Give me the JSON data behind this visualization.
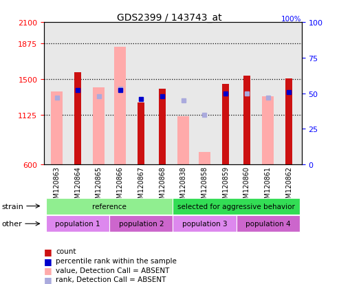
{
  "title": "GDS2399 / 143743_at",
  "samples": [
    "GSM120863",
    "GSM120864",
    "GSM120865",
    "GSM120866",
    "GSM120867",
    "GSM120868",
    "GSM120838",
    "GSM120858",
    "GSM120859",
    "GSM120860",
    "GSM120861",
    "GSM120862"
  ],
  "count_values": [
    null,
    1570,
    null,
    null,
    1255,
    1395,
    null,
    null,
    1450,
    1535,
    null,
    1510
  ],
  "absent_value_bars": [
    1370,
    null,
    1415,
    1840,
    null,
    null,
    1110,
    730,
    null,
    null,
    1320,
    null
  ],
  "percentile_rank": [
    null,
    52,
    null,
    52,
    46,
    48,
    null,
    null,
    50,
    null,
    null,
    51
  ],
  "absent_rank": [
    47,
    null,
    48,
    53,
    null,
    null,
    45,
    35,
    null,
    50,
    47,
    null
  ],
  "ylim": [
    600,
    2100
  ],
  "y2lim": [
    0,
    100
  ],
  "yticks": [
    600,
    1125,
    1500,
    1875,
    2100
  ],
  "y2ticks": [
    0,
    25,
    50,
    75,
    100
  ],
  "dotted_lines": [
    1875,
    1500,
    1125
  ],
  "strain_groups": [
    {
      "label": "reference",
      "start": 0,
      "end": 5,
      "color": "#90ee90"
    },
    {
      "label": "selected for aggressive behavior",
      "start": 6,
      "end": 11,
      "color": "#33dd55"
    }
  ],
  "other_groups": [
    {
      "label": "population 1",
      "start": 0,
      "end": 2,
      "color": "#dd88ee"
    },
    {
      "label": "population 2",
      "start": 3,
      "end": 5,
      "color": "#cc66cc"
    },
    {
      "label": "population 3",
      "start": 6,
      "end": 8,
      "color": "#dd88ee"
    },
    {
      "label": "population 4",
      "start": 9,
      "end": 11,
      "color": "#cc66cc"
    }
  ],
  "count_color": "#cc1111",
  "absent_value_color": "#ffaaaa",
  "percentile_color": "#0000cc",
  "absent_rank_color": "#aaaadd",
  "plot_bg": "#e8e8e8"
}
